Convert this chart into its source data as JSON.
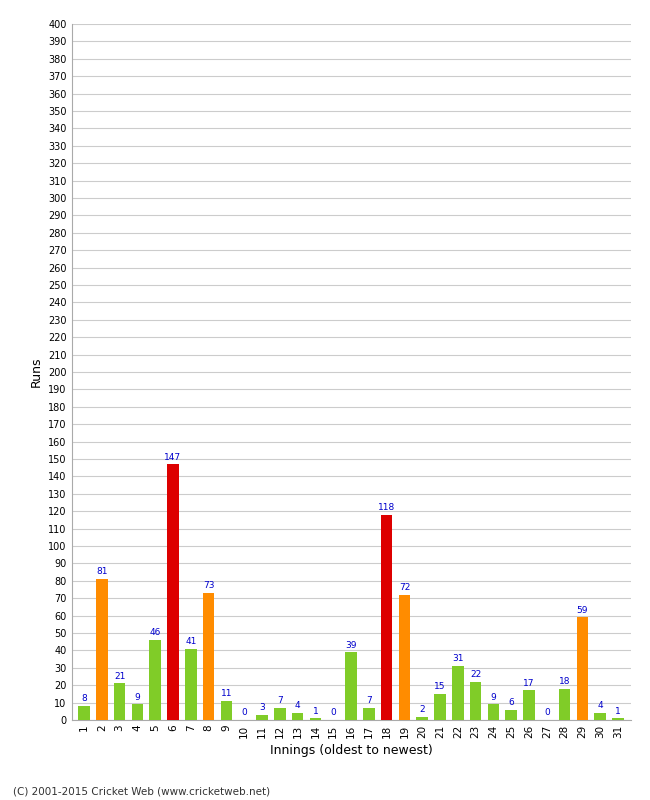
{
  "innings": [
    1,
    2,
    3,
    4,
    5,
    6,
    7,
    8,
    9,
    10,
    11,
    12,
    13,
    14,
    15,
    16,
    17,
    18,
    19,
    20,
    21,
    22,
    23,
    24,
    25,
    26,
    27,
    28,
    29,
    30,
    31
  ],
  "values": [
    8,
    81,
    21,
    9,
    46,
    147,
    41,
    73,
    11,
    0,
    3,
    7,
    4,
    1,
    0,
    39,
    7,
    118,
    72,
    2,
    15,
    31,
    22,
    9,
    6,
    17,
    0,
    18,
    59,
    4,
    1
  ],
  "colors": [
    "#80cc28",
    "#ff8c00",
    "#80cc28",
    "#80cc28",
    "#80cc28",
    "#dd0000",
    "#80cc28",
    "#ff8c00",
    "#80cc28",
    "#80cc28",
    "#80cc28",
    "#80cc28",
    "#80cc28",
    "#80cc28",
    "#80cc28",
    "#80cc28",
    "#80cc28",
    "#dd0000",
    "#ff8c00",
    "#80cc28",
    "#80cc28",
    "#80cc28",
    "#80cc28",
    "#80cc28",
    "#80cc28",
    "#80cc28",
    "#80cc28",
    "#80cc28",
    "#ff8c00",
    "#80cc28",
    "#80cc28"
  ],
  "ylabel": "Runs",
  "xlabel": "Innings (oldest to newest)",
  "ylim": [
    0,
    400
  ],
  "background_color": "#ffffff",
  "grid_color": "#cccccc",
  "label_color": "#0000cc",
  "copyright": "(C) 2001-2015 Cricket Web (www.cricketweb.net)"
}
